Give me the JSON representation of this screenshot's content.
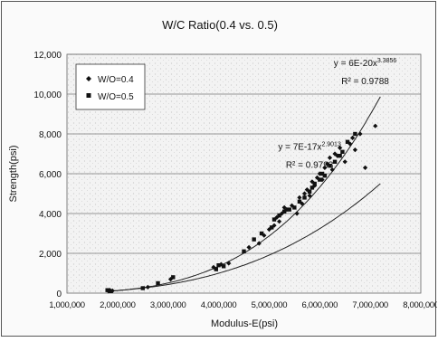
{
  "chart_data": {
    "type": "scatter",
    "title": "W/C Ratio(0.4 vs. 0.5)",
    "xlabel": "Modulus-E(psi)",
    "ylabel": "Strength(psi)",
    "xlim": [
      1000000,
      8000000
    ],
    "ylim": [
      0,
      12000
    ],
    "x_ticks": [
      "1,000,000",
      "2,000,000",
      "3,000,000",
      "4,000,000",
      "5,000,000",
      "6,000,000",
      "7,000,000",
      "8,000,000"
    ],
    "y_ticks": [
      "0",
      "2,000",
      "4,000",
      "6,000",
      "8,000",
      "10,000",
      "12,000"
    ],
    "x_tick_values": [
      1000000,
      2000000,
      3000000,
      4000000,
      5000000,
      6000000,
      7000000,
      8000000
    ],
    "y_tick_values": [
      0,
      2000,
      4000,
      6000,
      8000,
      10000,
      12000
    ],
    "grid": "horizontal",
    "legend_position": "top-left",
    "annotations": [
      {
        "text": "y = 6E-20x",
        "sup": "3.3856",
        "x": 6900000,
        "y": 11400
      },
      {
        "text": "R² = 0.9788",
        "sup": "",
        "x": 6900000,
        "y": 10500
      },
      {
        "text": "y = 7E-17x",
        "sup": "2.9013",
        "x": 5800000,
        "y": 7200
      },
      {
        "text": "R² = 0.9793",
        "sup": "",
        "x": 5800000,
        "y": 6300
      }
    ],
    "series": [
      {
        "name": "W/O=0.4",
        "marker": "diamond",
        "color": "#111111",
        "x": [
          1820000,
          1850000,
          1900000,
          2600000,
          3050000,
          3900000,
          4050000,
          4200000,
          4600000,
          4800000,
          4900000,
          5000000,
          5100000,
          5150000,
          5200000,
          5250000,
          5300000,
          5350000,
          5450000,
          5550000,
          5600000,
          5650000,
          5700000,
          5750000,
          5800000,
          5850000,
          5900000,
          5950000,
          6000000,
          6050000,
          6100000,
          6150000,
          6200000,
          6250000,
          6300000,
          6350000,
          6400000,
          6500000,
          6600000,
          6650000,
          6700000,
          6800000,
          6900000,
          7100000
        ],
        "y": [
          100,
          150,
          120,
          300,
          700,
          1300,
          1450,
          1500,
          2300,
          2500,
          2900,
          3200,
          3400,
          3800,
          3600,
          4000,
          4300,
          4200,
          4400,
          4000,
          4800,
          4500,
          5000,
          5200,
          4900,
          5600,
          5400,
          5800,
          6000,
          5700,
          6300,
          6500,
          6800,
          6200,
          7000,
          6900,
          7300,
          6600,
          7500,
          7800,
          7200,
          8000,
          6300,
          8400
        ]
      },
      {
        "name": "W/O=0.5",
        "marker": "square",
        "color": "#111111",
        "x": [
          1800000,
          1870000,
          2500000,
          2800000,
          3100000,
          3950000,
          4000000,
          4100000,
          4500000,
          4700000,
          4850000,
          5050000,
          5100000,
          5200000,
          5300000,
          5400000,
          5500000,
          5600000,
          5700000,
          5800000,
          5850000,
          5900000,
          6000000,
          6050000,
          6100000,
          6200000,
          6300000,
          6400000,
          6450000,
          6550000,
          6700000
        ],
        "y": [
          150,
          100,
          250,
          500,
          800,
          1200,
          1400,
          1350,
          2100,
          2700,
          3000,
          3300,
          3700,
          3900,
          4100,
          4200,
          4300,
          4600,
          4800,
          5100,
          5300,
          5500,
          5700,
          6000,
          5900,
          6400,
          6600,
          6900,
          7100,
          7600,
          8000
        ]
      }
    ],
    "trendlines": [
      {
        "series": "W/O=0.4",
        "coef": 6e-20,
        "exp": 3.3856
      },
      {
        "series": "W/O=0.5",
        "coef": 7e-17,
        "exp": 2.9013
      }
    ]
  }
}
